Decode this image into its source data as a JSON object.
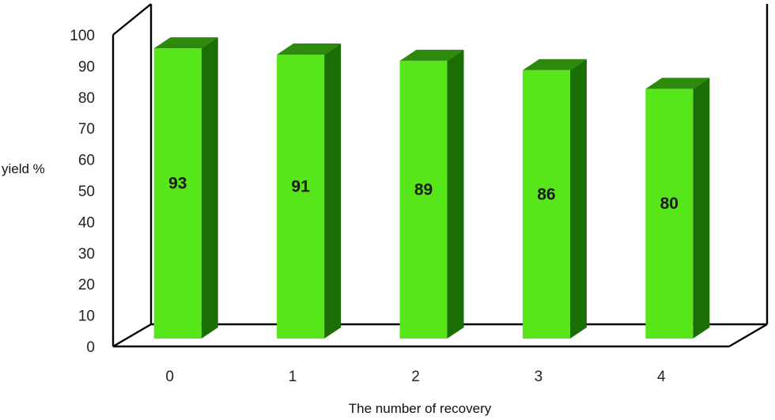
{
  "chart_data": {
    "type": "bar",
    "categories": [
      "0",
      "1",
      "2",
      "3",
      "4"
    ],
    "values": [
      93,
      91,
      89,
      86,
      80
    ],
    "data_labels": [
      "93",
      "91",
      "89",
      "86",
      "80"
    ],
    "title": "",
    "xlabel": "The number of recovery",
    "ylabel": "yield %",
    "ylim": [
      0,
      100
    ],
    "yticks": [
      "0",
      "10",
      "20",
      "30",
      "40",
      "50",
      "60",
      "70",
      "80",
      "90",
      "100"
    ],
    "grid": false,
    "legend": "none",
    "style": "3d-column",
    "colors": {
      "bar_front": "#57e619",
      "bar_side": "#1a6e04",
      "bar_top": "#2d8a0c",
      "frame": "#000000"
    }
  }
}
